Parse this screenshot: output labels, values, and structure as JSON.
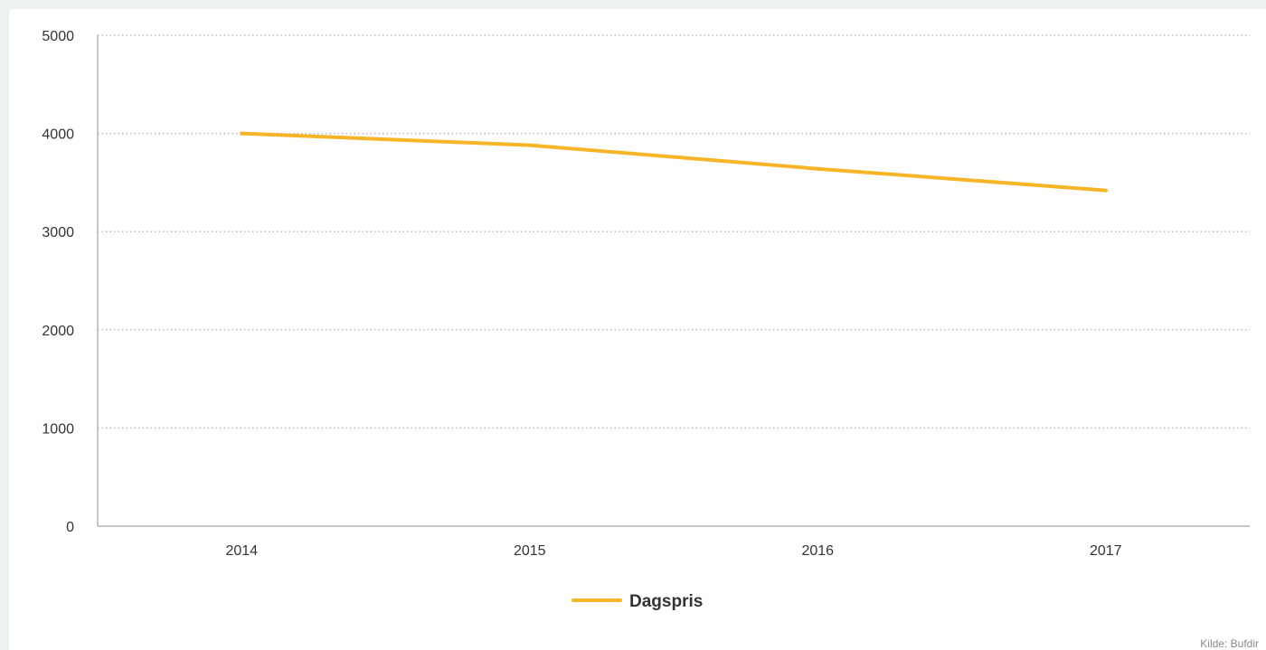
{
  "chart_data": {
    "type": "line",
    "x": [
      "2014",
      "2015",
      "2016",
      "2017"
    ],
    "series": [
      {
        "name": "Dagspris",
        "values": [
          4000,
          3880,
          3640,
          3420
        ],
        "color": "#f5b526"
      }
    ],
    "y_ticks": [
      "0",
      "1000",
      "2000",
      "3000",
      "4000",
      "5000"
    ],
    "ylim": [
      0,
      5000
    ],
    "grid": true,
    "legend": "bottom-center",
    "source": "Kilde: Bufdir"
  }
}
